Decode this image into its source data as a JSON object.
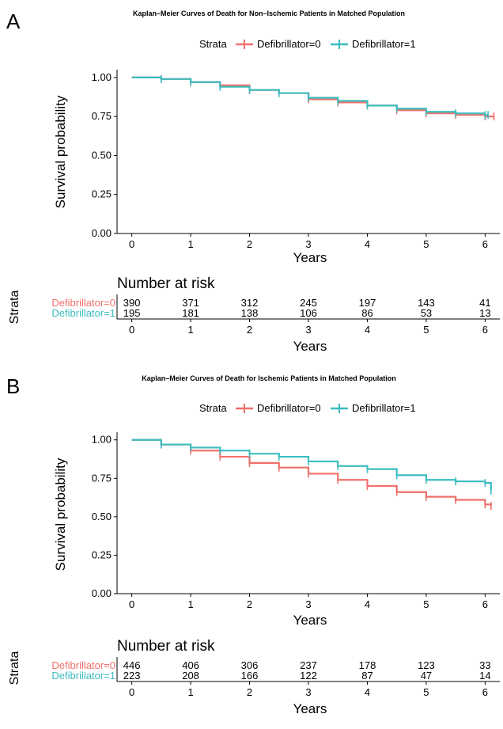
{
  "panels": [
    {
      "label": "A",
      "title": "Kaplan–Meier Curves of Death for Non–Ischemic Patients in Matched Population",
      "legend_title": "Strata",
      "legend_entries": [
        "Defibrillator=0",
        "Defibrillator=1"
      ],
      "ylabel": "Survival probability",
      "xlabel": "Years",
      "risk_title": "Number at risk",
      "risk_strata_label": "Strata",
      "risk_xlabel": "Years",
      "risk_rows": [
        {
          "label": "Defibrillator=0",
          "values": [
            "390",
            "371",
            "312",
            "245",
            "197",
            "143",
            "41"
          ]
        },
        {
          "label": "Defibrillator=1",
          "values": [
            "195",
            "181",
            "138",
            "106",
            "86",
            "53",
            "13"
          ]
        }
      ]
    },
    {
      "label": "B",
      "title": "Kaplan–Meier Curves of Death for Ischemic Patients in Matched Population",
      "legend_title": "Strata",
      "legend_entries": [
        "Defibrillator=0",
        "Defibrillator=1"
      ],
      "ylabel": "Survival probability",
      "xlabel": "Years",
      "risk_title": "Number at risk",
      "risk_strata_label": "Strata",
      "risk_xlabel": "Years",
      "risk_rows": [
        {
          "label": "Defibrillator=0",
          "values": [
            "446",
            "406",
            "306",
            "237",
            "178",
            "123",
            "33"
          ]
        },
        {
          "label": "Defibrillator=1",
          "values": [
            "223",
            "208",
            "166",
            "122",
            "87",
            "47",
            "14"
          ]
        }
      ]
    }
  ],
  "colors": {
    "defib0": "#F0706A",
    "defib1": "#3DBDBF",
    "axis": "#000000"
  },
  "chart_data": [
    {
      "type": "line",
      "title": "Kaplan–Meier Curves of Death for Non–Ischemic Patients in Matched Population",
      "xlabel": "Years",
      "ylabel": "Survival probability",
      "xlim": [
        -0.25,
        6.25
      ],
      "ylim": [
        0,
        1.05
      ],
      "xticks": [
        0,
        1,
        2,
        3,
        4,
        5,
        6
      ],
      "yticks": [
        "0.00",
        "0.25",
        "0.50",
        "0.75",
        "1.00"
      ],
      "legend_title": "Strata",
      "legend_position": "top",
      "grid": false,
      "series": [
        {
          "name": "Defibrillator=0",
          "x": [
            0,
            0.5,
            1,
            1.5,
            2,
            2.5,
            3,
            3.5,
            4,
            4.5,
            5,
            5.5,
            6,
            6.15
          ],
          "y": [
            1.0,
            0.99,
            0.97,
            0.95,
            0.92,
            0.9,
            0.86,
            0.84,
            0.82,
            0.79,
            0.77,
            0.76,
            0.75,
            0.75
          ]
        },
        {
          "name": "Defibrillator=1",
          "x": [
            0,
            0.5,
            1,
            1.5,
            2,
            2.5,
            3,
            3.5,
            4,
            4.5,
            5,
            5.5,
            6,
            6.05
          ],
          "y": [
            1.0,
            0.99,
            0.97,
            0.94,
            0.92,
            0.9,
            0.87,
            0.85,
            0.82,
            0.8,
            0.78,
            0.77,
            0.76,
            0.76
          ]
        }
      ],
      "risk_table": {
        "title": "Number at risk",
        "times": [
          0,
          1,
          2,
          3,
          4,
          5,
          6
        ],
        "rows": [
          {
            "name": "Defibrillator=0",
            "values": [
              390,
              371,
              312,
              245,
              197,
              143,
              41
            ]
          },
          {
            "name": "Defibrillator=1",
            "values": [
              195,
              181,
              138,
              106,
              86,
              53,
              13
            ]
          }
        ]
      }
    },
    {
      "type": "line",
      "title": "Kaplan–Meier Curves of Death for Ischemic Patients in Matched Population",
      "xlabel": "Years",
      "ylabel": "Survival probability",
      "xlim": [
        -0.25,
        6.25
      ],
      "ylim": [
        0,
        1.05
      ],
      "xticks": [
        0,
        1,
        2,
        3,
        4,
        5,
        6
      ],
      "yticks": [
        "0.00",
        "0.25",
        "0.50",
        "0.75",
        "1.00"
      ],
      "legend_title": "Strata",
      "legend_position": "top",
      "grid": false,
      "series": [
        {
          "name": "Defibrillator=0",
          "x": [
            0,
            0.5,
            1,
            1.5,
            2,
            2.5,
            3,
            3.5,
            4,
            4.5,
            5,
            5.5,
            6,
            6.1
          ],
          "y": [
            1.0,
            0.97,
            0.93,
            0.89,
            0.85,
            0.82,
            0.78,
            0.74,
            0.7,
            0.66,
            0.63,
            0.61,
            0.58,
            0.57
          ]
        },
        {
          "name": "Defibrillator=1",
          "x": [
            0,
            0.5,
            1,
            1.5,
            2,
            2.5,
            3,
            3.5,
            4,
            4.5,
            5,
            5.5,
            6,
            6.1
          ],
          "y": [
            1.0,
            0.97,
            0.95,
            0.93,
            0.91,
            0.89,
            0.86,
            0.83,
            0.81,
            0.77,
            0.74,
            0.73,
            0.72,
            0.67
          ]
        }
      ],
      "risk_table": {
        "title": "Number at risk",
        "times": [
          0,
          1,
          2,
          3,
          4,
          5,
          6
        ],
        "rows": [
          {
            "name": "Defibrillator=0",
            "values": [
              446,
              406,
              306,
              237,
              178,
              123,
              33
            ]
          },
          {
            "name": "Defibrillator=1",
            "values": [
              223,
              208,
              166,
              122,
              87,
              47,
              14
            ]
          }
        ]
      }
    }
  ]
}
